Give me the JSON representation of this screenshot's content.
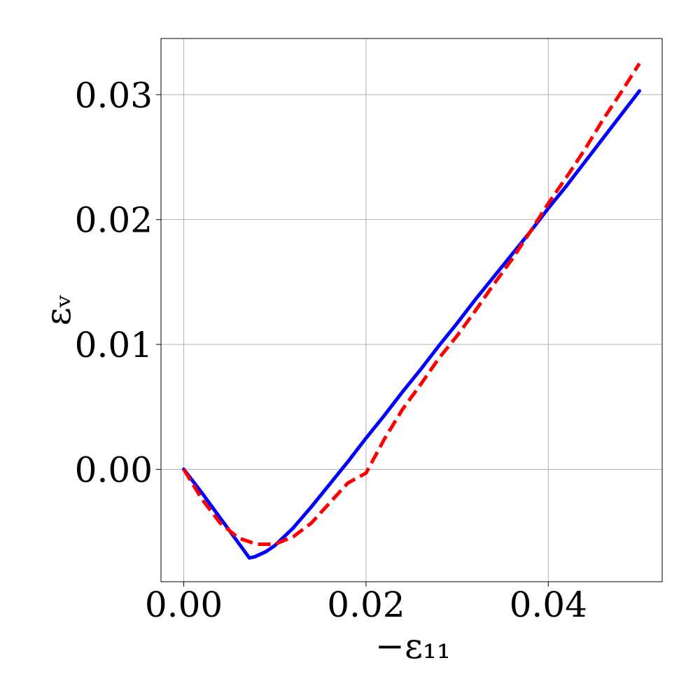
{
  "chart_data": {
    "type": "line",
    "title": "",
    "xlabel": "−ε₁₁",
    "ylabel": "εᵥ",
    "xlim": [
      -0.0025,
      0.0525
    ],
    "ylim": [
      -0.009,
      0.0345
    ],
    "xticks": [
      0.0,
      0.02,
      0.04
    ],
    "xtick_labels": [
      "0.00",
      "0.02",
      "0.04"
    ],
    "yticks": [
      0.0,
      0.01,
      0.02,
      0.03
    ],
    "ytick_labels": [
      "0.00",
      "0.01",
      "0.02",
      "0.03"
    ],
    "grid": true,
    "legend": "none",
    "series": [
      {
        "color": "#0000ff",
        "style": "solid",
        "x": [
          0.0,
          0.002,
          0.004,
          0.006,
          0.0072,
          0.0078,
          0.009,
          0.01,
          0.012,
          0.014,
          0.016,
          0.018,
          0.02,
          0.022,
          0.024,
          0.026,
          0.028,
          0.03,
          0.032,
          0.034,
          0.036,
          0.038,
          0.04,
          0.042,
          0.044,
          0.046,
          0.048,
          0.05
        ],
        "y": [
          0.0,
          -0.0019,
          -0.0039,
          -0.0059,
          -0.0071,
          -0.007,
          -0.0066,
          -0.0061,
          -0.0047,
          -0.003,
          -0.0012,
          0.0006,
          0.0025,
          0.0043,
          0.0062,
          0.008,
          0.0099,
          0.0117,
          0.0136,
          0.0154,
          0.0172,
          0.019,
          0.0209,
          0.0227,
          0.0246,
          0.0265,
          0.0284,
          0.0303
        ]
      },
      {
        "color": "#ff0000",
        "style": "dashed",
        "x": [
          0.0,
          0.002,
          0.004,
          0.006,
          0.008,
          0.01,
          0.012,
          0.014,
          0.016,
          0.018,
          0.02,
          0.022,
          0.024,
          0.026,
          0.028,
          0.03,
          0.032,
          0.034,
          0.036,
          0.038,
          0.04,
          0.042,
          0.044,
          0.046,
          0.048,
          0.05
        ],
        "y": [
          0.0,
          -0.0024,
          -0.0043,
          -0.0055,
          -0.006,
          -0.006,
          -0.0054,
          -0.0043,
          -0.0027,
          -0.0011,
          -0.0003,
          0.0024,
          0.0048,
          0.0068,
          0.0089,
          0.0107,
          0.0127,
          0.0148,
          0.0168,
          0.019,
          0.0213,
          0.0234,
          0.0256,
          0.028,
          0.0302,
          0.0325
        ]
      }
    ]
  }
}
